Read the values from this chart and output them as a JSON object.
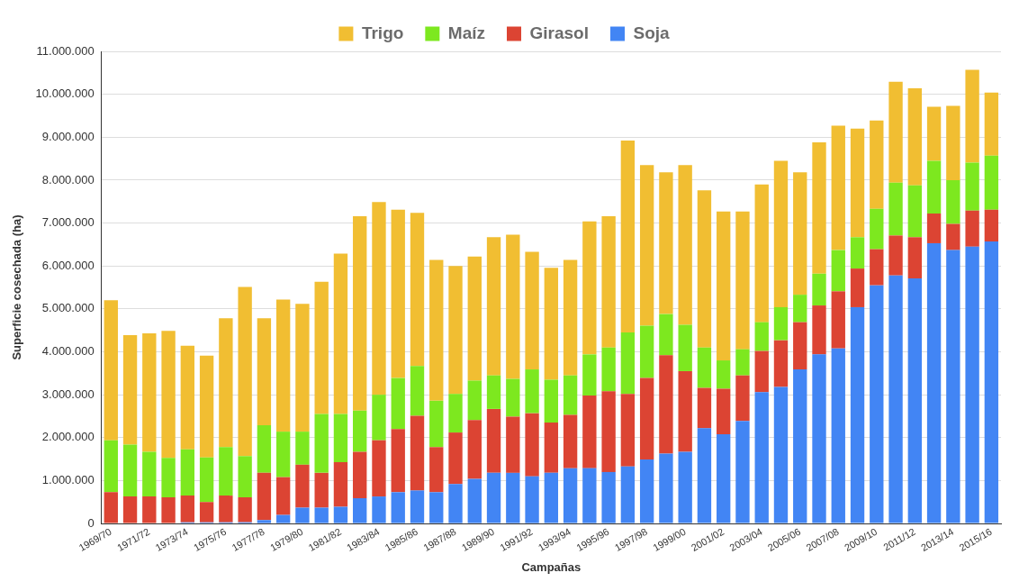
{
  "chart_data": {
    "type": "bar",
    "stacked": true,
    "xlabel": "Campañas",
    "ylabel": "Superficie cosechada (ha)",
    "categories": [
      "1969/70",
      null,
      "1971/72",
      null,
      "1973/74",
      null,
      "1975/76",
      null,
      "1977/78",
      null,
      "1979/80",
      null,
      "1981/82",
      null,
      "1983/84",
      null,
      "1985/86",
      null,
      "1987/88",
      null,
      "1989/90",
      null,
      "1991/92",
      null,
      "1993/94",
      null,
      "1995/96",
      null,
      "1997/98",
      null,
      "1999/00",
      null,
      "2001/02",
      null,
      "2003/04",
      null,
      "2005/06",
      null,
      "2007/08",
      null,
      "2009/10",
      null,
      "2011/12",
      null,
      "2013/14",
      null,
      "2015/16"
    ],
    "series": [
      {
        "name": "Soja",
        "color": "#4285f4",
        "values": [
          0,
          0,
          0,
          0,
          30000,
          30000,
          30000,
          30000,
          80000,
          200000,
          370000,
          370000,
          390000,
          590000,
          630000,
          730000,
          770000,
          730000,
          920000,
          1040000,
          1180000,
          1180000,
          1100000,
          1180000,
          1290000,
          1290000,
          1200000,
          1330000,
          1490000,
          1630000,
          1670000,
          2220000,
          2080000,
          2390000,
          3060000,
          3180000,
          3590000,
          3940000,
          4080000,
          5040000,
          5550000,
          5780000,
          5710000,
          6530000,
          6370000,
          6450000,
          6570000
        ]
      },
      {
        "name": "Girasol",
        "color": "#dc4433",
        "values": [
          730000,
          630000,
          630000,
          610000,
          620000,
          470000,
          620000,
          580000,
          1100000,
          880000,
          1000000,
          810000,
          1040000,
          1080000,
          1310000,
          1470000,
          1740000,
          1050000,
          1200000,
          1370000,
          1490000,
          1310000,
          1470000,
          1170000,
          1240000,
          1690000,
          1880000,
          1690000,
          1900000,
          2290000,
          1880000,
          940000,
          1060000,
          1060000,
          960000,
          1090000,
          1100000,
          1140000,
          1330000,
          900000,
          840000,
          930000,
          960000,
          690000,
          610000,
          840000,
          740000
        ]
      },
      {
        "name": "Maíz",
        "color": "#7de81f",
        "values": [
          1210000,
          1210000,
          1040000,
          920000,
          1080000,
          1040000,
          1130000,
          960000,
          1110000,
          1060000,
          770000,
          1370000,
          1120000,
          960000,
          1060000,
          1190000,
          1160000,
          1080000,
          900000,
          920000,
          780000,
          880000,
          1020000,
          1000000,
          920000,
          960000,
          1020000,
          1430000,
          1220000,
          960000,
          1080000,
          940000,
          660000,
          610000,
          670000,
          770000,
          640000,
          740000,
          960000,
          730000,
          940000,
          1230000,
          1210000,
          1230000,
          1020000,
          1120000,
          1260000
        ]
      },
      {
        "name": "Trigo",
        "color": "#f1be32",
        "values": [
          3260000,
          2550000,
          2760000,
          2960000,
          2410000,
          2370000,
          3000000,
          3940000,
          2490000,
          3080000,
          2980000,
          3080000,
          3740000,
          4530000,
          4490000,
          3920000,
          3570000,
          3280000,
          2980000,
          2890000,
          3220000,
          3360000,
          2740000,
          2610000,
          2690000,
          3100000,
          3060000,
          4470000,
          3740000,
          3300000,
          3720000,
          3660000,
          3470000,
          3210000,
          3210000,
          3410000,
          2850000,
          3060000,
          2900000,
          2530000,
          2060000,
          2350000,
          2260000,
          1260000,
          1730000,
          2160000,
          1470000
        ]
      }
    ],
    "ylim": [
      0,
      11000000
    ],
    "yticks": [
      0,
      {
        "value": 1000000,
        "label": "1.000.000"
      },
      {
        "value": 2000000,
        "label": "2.000.000"
      },
      {
        "value": 3000000,
        "label": "3.000.000"
      },
      {
        "value": 4000000,
        "label": "4.000.000"
      },
      {
        "value": 5000000,
        "label": "5.000.000"
      },
      {
        "value": 6000000,
        "label": "6.000.000"
      },
      {
        "value": 7000000,
        "label": "7.000.000"
      },
      {
        "value": 8000000,
        "label": "8.000.000"
      },
      {
        "value": 9000000,
        "label": "9.000.000"
      },
      {
        "value": 10000000,
        "label": "10.000.000"
      },
      {
        "value": 11000000,
        "label": "11.000.000"
      }
    ],
    "grid": "y",
    "legend": "top"
  }
}
